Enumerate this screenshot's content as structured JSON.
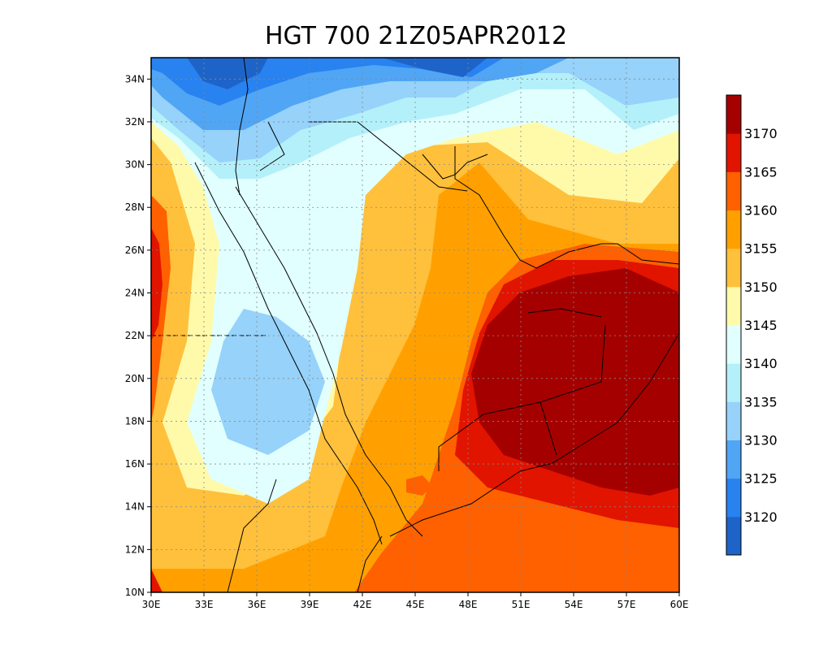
{
  "title": "HGT 700 21Z05APR2012",
  "map": {
    "x_range": [
      30,
      60
    ],
    "y_range": [
      10,
      35
    ],
    "x_ticks": [
      "30E",
      "33E",
      "36E",
      "39E",
      "42E",
      "45E",
      "48E",
      "51E",
      "54E",
      "57E",
      "60E"
    ],
    "y_ticks": [
      "10N",
      "12N",
      "14N",
      "16N",
      "18N",
      "20N",
      "22N",
      "24N",
      "26N",
      "28N",
      "30N",
      "32N",
      "34N"
    ],
    "grid": "dotted"
  },
  "colorbar": {
    "labels": [
      "3120",
      "3125",
      "3130",
      "3135",
      "3140",
      "3145",
      "3150",
      "3155",
      "3160",
      "3165",
      "3170"
    ],
    "colors": [
      "#1e64c8",
      "#2882f0",
      "#50a5f5",
      "#96d2fa",
      "#b4f0fa",
      "#e1ffff",
      "#fffaaa",
      "#ffc03c",
      "#ffa000",
      "#ff6000",
      "#e11400",
      "#a50000"
    ]
  }
}
